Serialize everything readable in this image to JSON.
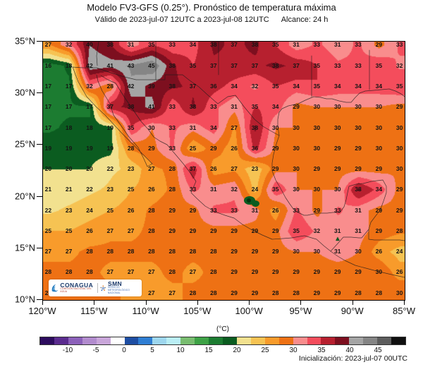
{
  "header": {
    "title": "Modelo FV3-GFS (0.25°). Pronóstico de temperatura máxima",
    "valid": "Válido de 2023-jul-07 12UTC a 2023-jul-08 12UTC",
    "alcance": "Alcance: 24 h"
  },
  "footer": {
    "init_label": "Inicialización: 2023-jul-07 00UTC"
  },
  "colorbar": {
    "unit_label": "(°C)",
    "scale_min": -15,
    "scale_max": 50,
    "scale_step": 2.5,
    "tick_values": [
      -10,
      -5,
      0,
      5,
      10,
      15,
      20,
      25,
      30,
      35,
      40,
      45
    ],
    "segment_colors": [
      "#2d0c5e",
      "#5b2c8f",
      "#8c61ba",
      "#b28cce",
      "#c9a6da",
      "#ffffff",
      "#1e4ea3",
      "#2f7ed3",
      "#9ed7ee",
      "#baeef5",
      "#79bd70",
      "#3ea246",
      "#1c7c31",
      "#0b5c20",
      "#f2e18f",
      "#f6c353",
      "#f89b2b",
      "#ee7114",
      "#f98d8d",
      "#f44d5c",
      "#b7202f",
      "#7d0f1f",
      "#a5a5a5",
      "#858585",
      "#5d5d5d",
      "#0f0f0f"
    ]
  },
  "axes": {
    "lat_labels": [
      "35°N",
      "30°N",
      "25°N",
      "20°N",
      "15°N",
      "10°N"
    ],
    "lat_values": [
      35,
      30,
      25,
      20,
      15,
      10
    ],
    "lon_labels": [
      "120°W",
      "115°W",
      "110°W",
      "105°W",
      "100°W",
      "95°W",
      "90°W",
      "85°W"
    ],
    "lon_values": [
      120,
      115,
      110,
      105,
      100,
      95,
      90,
      85
    ]
  },
  "logos": {
    "conagua": {
      "name": "CONAGUA",
      "subtitle": "COMISIÓN NACIONAL DEL AGUA"
    },
    "smn": {
      "name": "SMN",
      "subtitle": "SERVICIO METEOROLÓGICO NACIONAL"
    }
  },
  "chart_data": {
    "type": "heatmap",
    "title": "Pronóstico de temperatura máxima (°C), FV3-GFS 0.25°",
    "map_extent": {
      "lon_west": 120,
      "lon_east": 85,
      "lat_north": 35,
      "lat_south": 10
    },
    "lons": [
      119.5,
      117.5,
      115.5,
      113.5,
      111.5,
      109.5,
      107.5,
      105.5,
      103.5,
      101.5,
      99.5,
      97.5,
      95.5,
      93.5,
      91.5,
      89.5,
      87.5,
      85.5
    ],
    "lats": [
      34.7,
      32.7,
      30.7,
      28.7,
      26.7,
      24.7,
      22.7,
      20.7,
      18.7,
      16.7,
      14.7,
      12.7,
      10.7
    ],
    "values": [
      [
        27,
        32,
        40,
        38,
        31,
        35,
        33,
        34,
        38,
        37,
        38,
        35,
        31,
        33,
        31,
        33,
        29,
        33
      ],
      [
        16,
        18,
        42,
        41,
        43,
        45,
        38,
        35,
        37,
        37,
        37,
        38,
        37,
        35,
        33,
        33,
        35,
        32
      ],
      [
        17,
        17,
        32,
        28,
        42,
        39,
        38,
        37,
        36,
        34,
        32,
        35,
        34,
        35,
        34,
        34,
        34,
        35
      ],
      [
        17,
        17,
        17,
        37,
        38,
        41,
        33,
        38,
        33,
        31,
        35,
        34,
        29,
        30,
        30,
        30,
        30,
        29
      ],
      [
        17,
        18,
        18,
        19,
        35,
        30,
        33,
        31,
        34,
        27,
        38,
        30,
        30,
        30,
        30,
        30,
        30,
        30
      ],
      [
        19,
        19,
        19,
        19,
        28,
        29,
        33,
        25,
        29,
        26,
        36,
        29,
        30,
        30,
        29,
        29,
        30,
        30
      ],
      [
        20,
        20,
        20,
        22,
        23,
        27,
        28,
        37,
        26,
        27,
        23,
        29,
        30,
        29,
        29,
        29,
        29,
        30
      ],
      [
        21,
        21,
        22,
        23,
        25,
        26,
        28,
        33,
        31,
        32,
        24,
        35,
        30,
        30,
        30,
        38,
        34,
        29
      ],
      [
        22,
        23,
        24,
        25,
        26,
        28,
        29,
        29,
        33,
        33,
        31,
        26,
        33,
        29,
        33,
        31,
        29,
        29
      ],
      [
        25,
        25,
        26,
        27,
        27,
        28,
        29,
        29,
        29,
        29,
        29,
        29,
        35,
        32,
        31,
        31,
        29,
        28
      ],
      [
        27,
        27,
        28,
        28,
        28,
        28,
        28,
        28,
        28,
        29,
        29,
        29,
        30,
        30,
        31,
        30,
        26,
        24
      ],
      [
        28,
        28,
        28,
        27,
        27,
        27,
        28,
        27,
        28,
        29,
        29,
        29,
        29,
        29,
        29,
        29,
        30,
        26
      ],
      [
        28,
        28,
        28,
        28,
        27,
        27,
        27,
        28,
        28,
        29,
        29,
        28,
        28,
        29,
        29,
        28,
        28,
        30
      ]
    ],
    "hidden_by_logo": [
      [
        12,
        1
      ],
      [
        12,
        2
      ],
      [
        12,
        3
      ],
      [
        12,
        4
      ]
    ],
    "legend_position": "bottom",
    "grid": false
  }
}
